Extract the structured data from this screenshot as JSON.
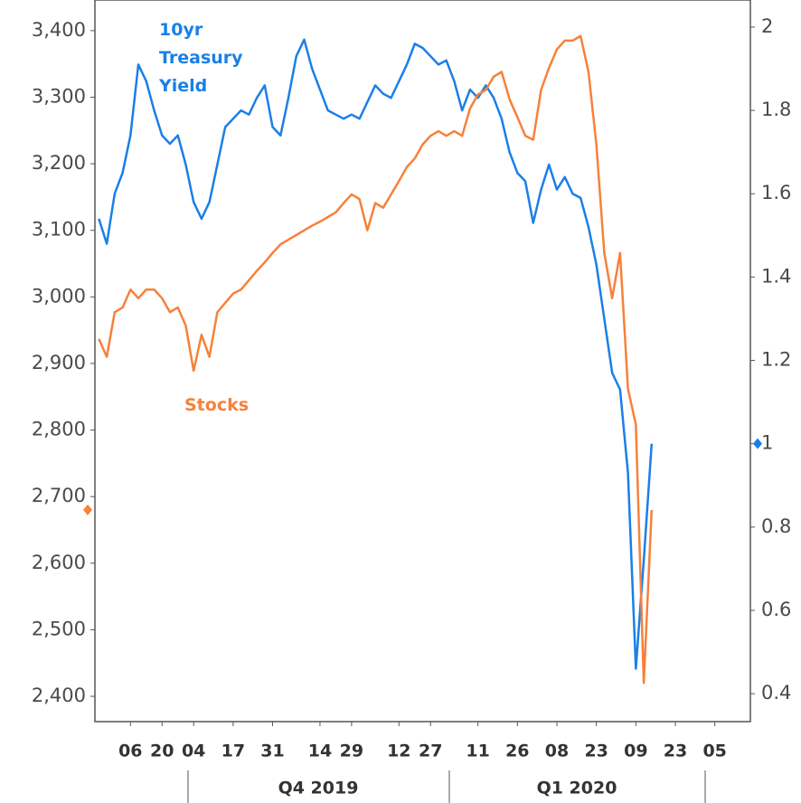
{
  "chart_data": {
    "type": "line",
    "categories": [
      null,
      null,
      null,
      null,
      "06",
      null,
      null,
      null,
      "20",
      null,
      null,
      null,
      "04",
      null,
      null,
      null,
      null,
      "17",
      null,
      null,
      null,
      null,
      "31",
      null,
      null,
      null,
      null,
      null,
      "14",
      null,
      null,
      null,
      "29",
      null,
      null,
      null,
      null,
      null,
      "12",
      null,
      null,
      null,
      "27",
      null,
      null,
      null,
      null,
      null,
      "11",
      null,
      null,
      null,
      null,
      "26",
      null,
      null,
      null,
      null,
      "08",
      null,
      null,
      null,
      null,
      "23",
      null,
      null,
      null,
      null,
      "09",
      null,
      null,
      null,
      null,
      "23",
      null,
      null,
      null,
      null,
      "05",
      null,
      null,
      null,
      null
    ],
    "x_groups": [
      "Q4 2019",
      "Q1 2020"
    ],
    "series": [
      {
        "name": "Stocks",
        "color": "#f7813a",
        "axis": "y",
        "values": [
          2937,
          2910,
          2977,
          2984,
          3011,
          2998,
          3011,
          3011,
          2998,
          2977,
          2984,
          2957,
          2889,
          2943,
          2910,
          2977,
          2991,
          3005,
          3011,
          3025,
          3039,
          3052,
          3066,
          3079,
          3086,
          3093,
          3100,
          3107,
          3113,
          3120,
          3127,
          3141,
          3154,
          3147,
          3100,
          3141,
          3134,
          3154,
          3174,
          3195,
          3208,
          3229,
          3242,
          3249,
          3242,
          3249,
          3242,
          3283,
          3304,
          3311,
          3331,
          3338,
          3297,
          3270,
          3242,
          3236,
          3311,
          3344,
          3372,
          3385,
          3385,
          3392,
          3338,
          3229,
          3066,
          2998,
          3066,
          2862,
          2808,
          2420,
          2680,
          null,
          null,
          null,
          null,
          null,
          null,
          null,
          null,
          null,
          null,
          null,
          null
        ]
      },
      {
        "name": "10yr Treasury Yield",
        "color": "#1a7fe8",
        "axis": "y2",
        "values": [
          1.54,
          1.48,
          1.6,
          1.65,
          1.74,
          1.91,
          1.87,
          1.8,
          1.74,
          1.72,
          1.74,
          1.67,
          1.58,
          1.54,
          1.58,
          1.67,
          1.76,
          1.78,
          1.8,
          1.79,
          1.83,
          1.86,
          1.76,
          1.74,
          1.83,
          1.93,
          1.97,
          1.9,
          1.85,
          1.8,
          1.79,
          1.78,
          1.79,
          1.78,
          1.82,
          1.86,
          1.84,
          1.83,
          1.87,
          1.91,
          1.96,
          1.95,
          1.93,
          1.91,
          1.92,
          1.87,
          1.8,
          1.85,
          1.83,
          1.86,
          1.83,
          1.78,
          1.7,
          1.65,
          1.63,
          1.53,
          1.61,
          1.67,
          1.61,
          1.64,
          1.6,
          1.59,
          1.52,
          1.43,
          1.3,
          1.17,
          1.13,
          0.93,
          0.46,
          0.72,
          1.0,
          null,
          null,
          null,
          null,
          null,
          null,
          null,
          null,
          null,
          null,
          null,
          null
        ]
      }
    ],
    "ylim": [
      2362,
      3446
    ],
    "yticks": [
      {
        "value": 2400,
        "label": "2,400"
      },
      {
        "value": 2500,
        "label": "2,500"
      },
      {
        "value": 2600,
        "label": "2,600"
      },
      {
        "value": 2700,
        "label": "2,700"
      },
      {
        "value": 2800,
        "label": "2,800"
      },
      {
        "value": 2900,
        "label": "2,900"
      },
      {
        "value": 3000,
        "label": "3,000"
      },
      {
        "value": 3100,
        "label": "3,100"
      },
      {
        "value": 3200,
        "label": "3,200"
      },
      {
        "value": 3300,
        "label": "3,300"
      },
      {
        "value": 3400,
        "label": "3,400"
      }
    ],
    "y2lim": [
      0.333,
      2.065
    ],
    "y2ticks": [
      0.4,
      0.6,
      0.8,
      1,
      1.2,
      1.4,
      1.6,
      1.8,
      2
    ],
    "grid": false
  }
}
